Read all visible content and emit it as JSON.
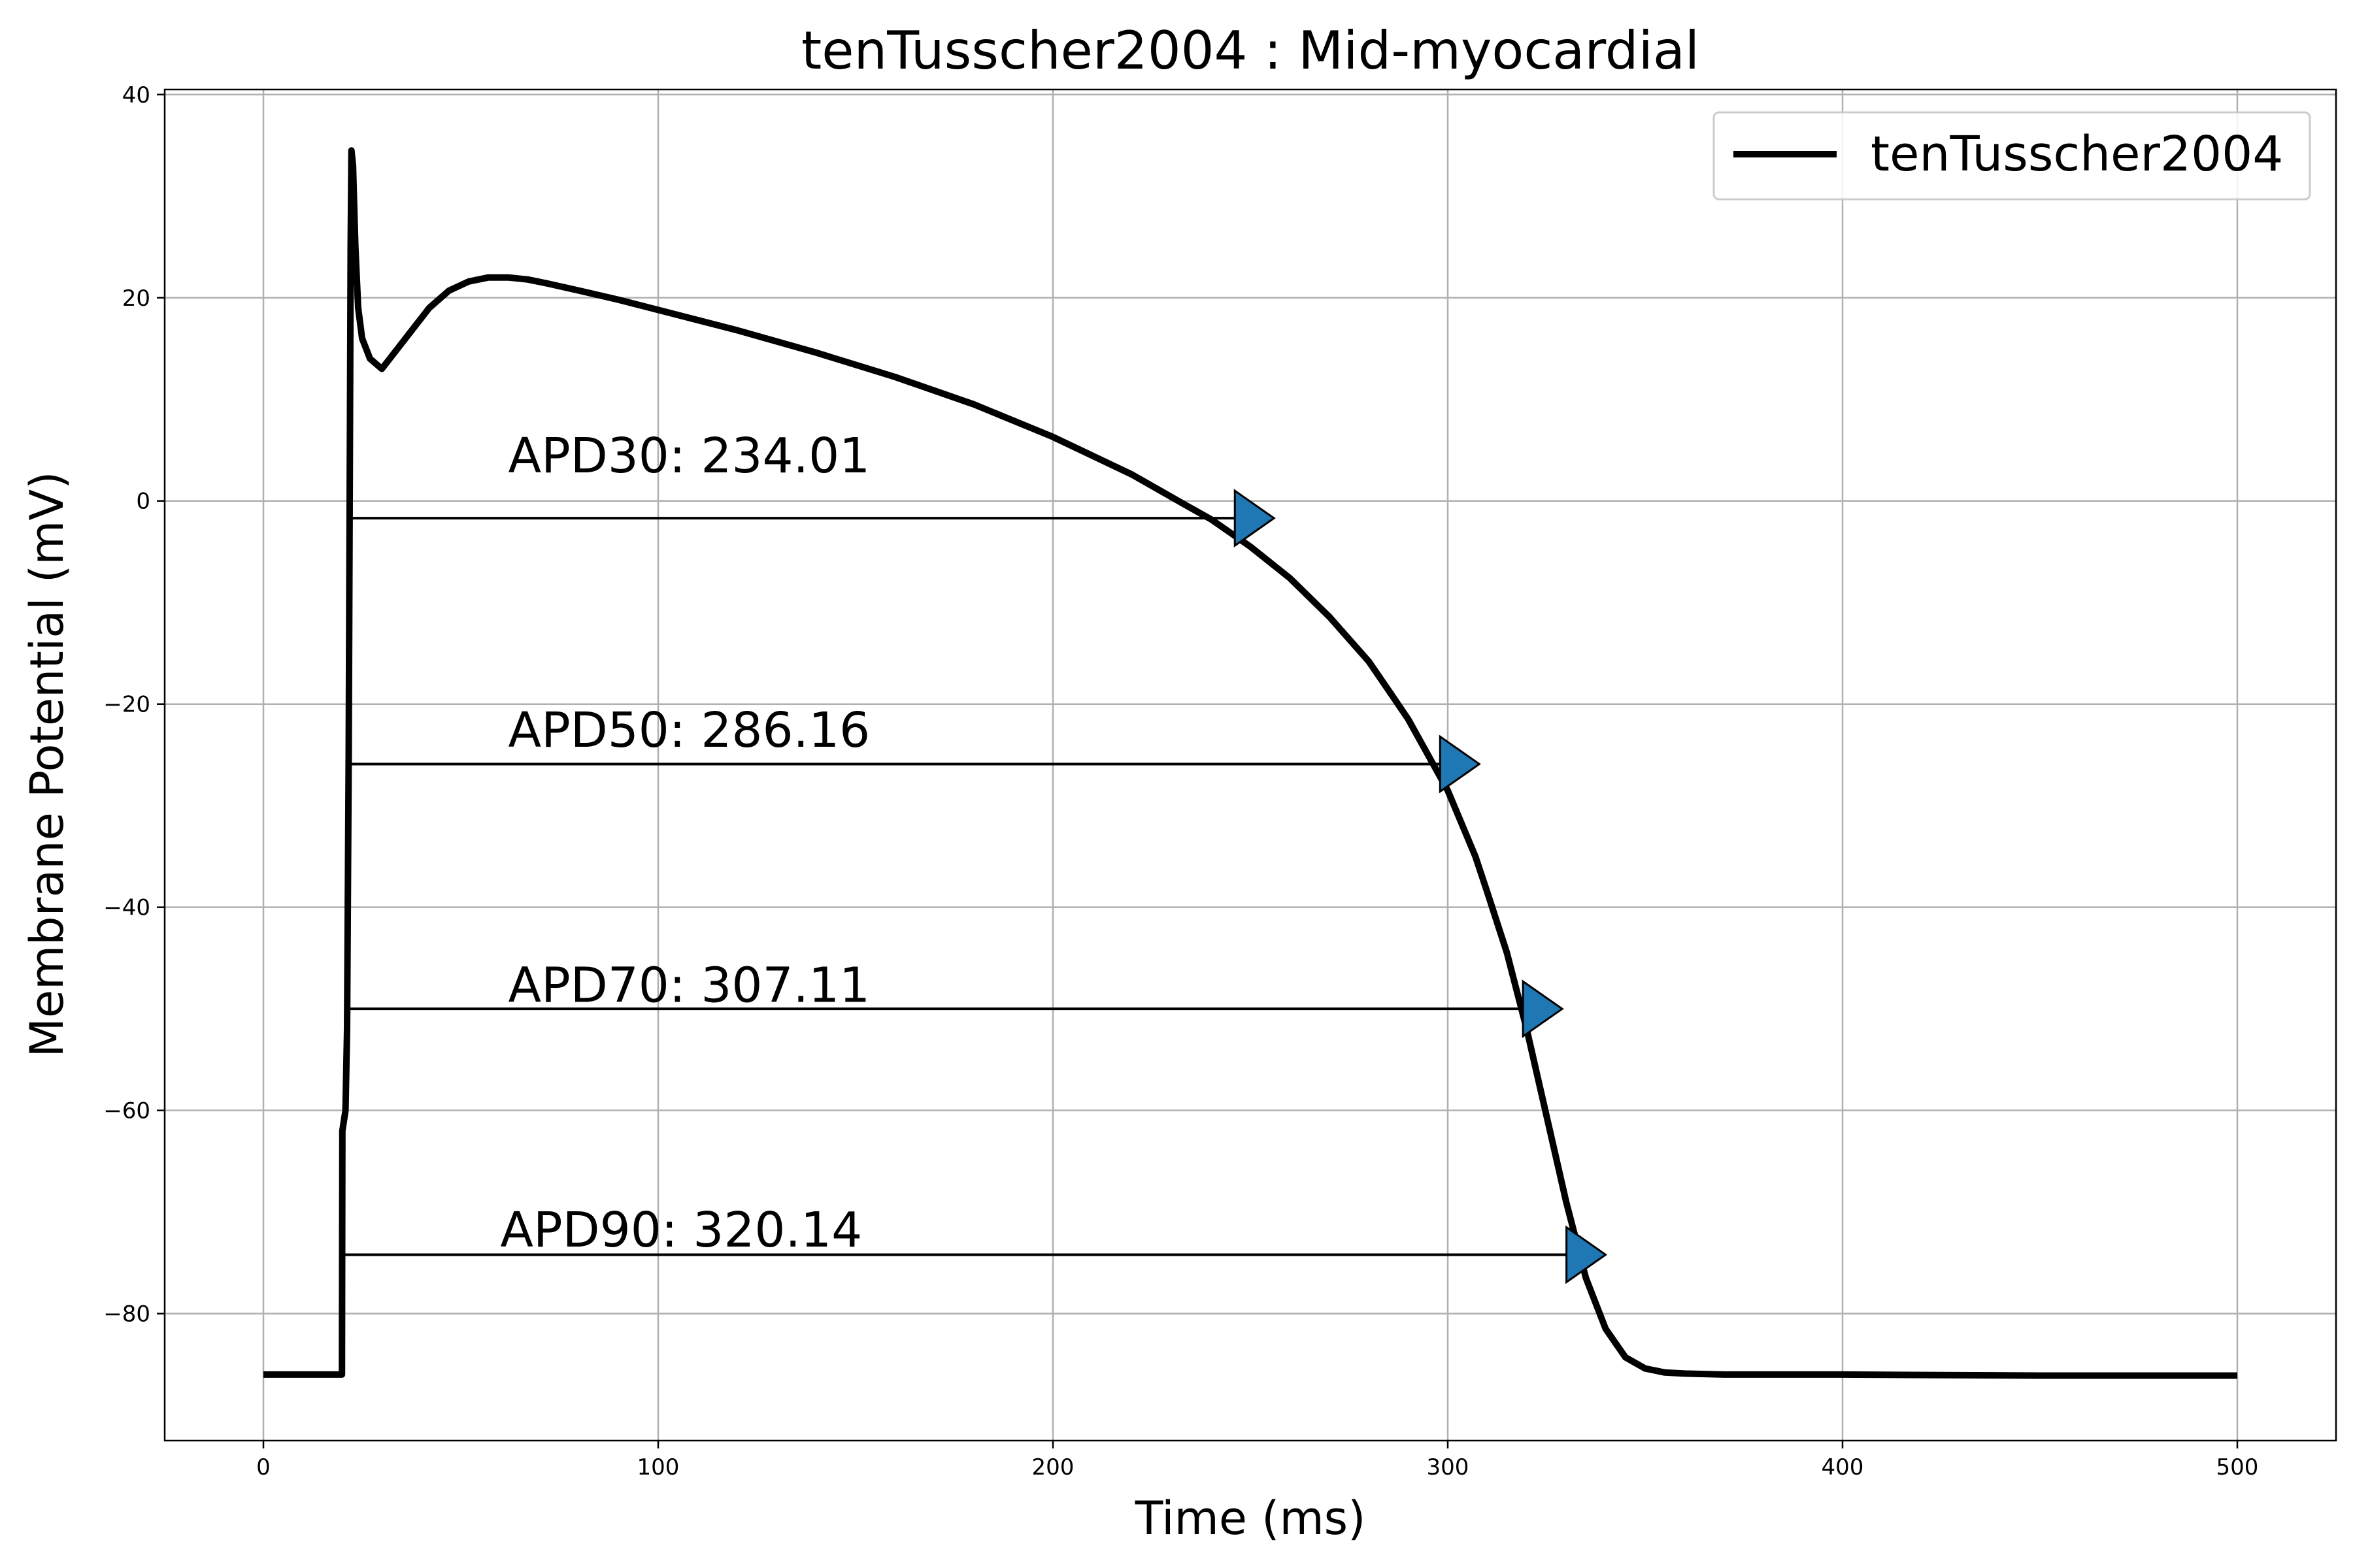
{
  "chart_data": {
    "type": "line",
    "title": "tenTusscher2004 : Mid-myocardial",
    "xlabel": "Time (ms)",
    "ylabel": "Membrane Potential (mV)",
    "xlim": [
      -25,
      525
    ],
    "ylim": [
      -92.5,
      40.5
    ],
    "xticks": [
      0,
      100,
      200,
      300,
      400,
      500
    ],
    "xtick_labels": [
      "0",
      "100",
      "200",
      "300",
      "400",
      "500"
    ],
    "yticks": [
      40,
      20,
      0,
      -20,
      -40,
      -60,
      -80
    ],
    "ytick_labels": [
      "40",
      "20",
      "0",
      "−20",
      "−40",
      "−60",
      "−80"
    ],
    "grid": true,
    "legend": {
      "position": "top-right",
      "entries": [
        "tenTusscher2004"
      ]
    },
    "colors": {
      "trace": "#000000",
      "marker": "#1f77b4",
      "grid": "#b0b0b0"
    },
    "series": [
      {
        "name": "tenTusscher2004",
        "x": [
          0,
          19.9,
          20.0,
          20.8,
          21.2,
          21.6,
          21.9,
          22.1,
          22.3,
          22.7,
          23.3,
          24,
          25,
          27,
          30,
          33,
          37,
          42,
          47,
          52,
          57,
          62,
          67,
          72,
          80,
          90,
          100,
          120,
          140,
          160,
          180,
          200,
          220,
          234,
          240,
          250,
          260,
          270,
          280,
          286,
          290,
          300,
          307,
          310,
          315,
          320,
          325,
          330,
          335,
          340,
          345,
          350,
          355,
          360,
          370,
          380,
          400,
          450,
          500
        ],
        "y": [
          -86,
          -86,
          -62,
          -60,
          -52,
          -25,
          5,
          25,
          34.5,
          33,
          25,
          19,
          16,
          14,
          13,
          14.5,
          16.5,
          19,
          20.7,
          21.6,
          22,
          22,
          21.8,
          21.4,
          20.7,
          19.8,
          18.8,
          16.8,
          14.6,
          12.2,
          9.5,
          6.3,
          2.6,
          -0.5,
          -1.8,
          -4.5,
          -7.6,
          -11.4,
          -15.8,
          -19.2,
          -21.5,
          -28.5,
          -35,
          -38.5,
          -44.5,
          -52,
          -60.5,
          -69,
          -76.5,
          -81.5,
          -84.3,
          -85.4,
          -85.8,
          -85.9,
          -86,
          -86,
          -86,
          -86.1,
          -86.1
        ]
      }
    ],
    "apd": [
      {
        "label": "APD30: 234.01",
        "start_x": 22,
        "end_x": 256,
        "y": -1.7,
        "text_x": 62,
        "text_y": 2.8
      },
      {
        "label": "APD50: 286.16",
        "start_x": 22,
        "end_x": 308,
        "y": -25.9,
        "text_x": 62,
        "text_y": -24.2
      },
      {
        "label": "APD70: 307.11",
        "start_x": 22,
        "end_x": 329,
        "y": -50,
        "text_x": 62,
        "text_y": -49.3
      },
      {
        "label": "APD90: 320.14",
        "start_x": 20,
        "end_x": 340,
        "y": -74.2,
        "text_x": 60,
        "text_y": -73.4
      }
    ]
  }
}
